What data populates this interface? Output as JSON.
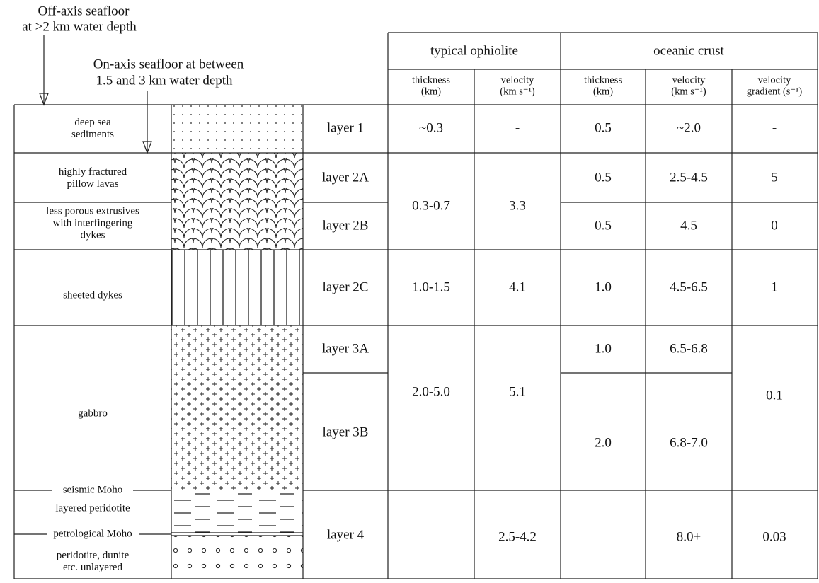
{
  "annotations": {
    "off_axis": [
      "Off-axis seafloor",
      "at >2 km water depth"
    ],
    "on_axis": [
      "On-axis seafloor at between",
      "1.5 and 3 km water depth"
    ]
  },
  "header": {
    "groups": [
      "typical ophiolite",
      "oceanic crust"
    ],
    "columns": [
      [
        "thickness",
        "(km)"
      ],
      [
        "velocity",
        "(km s⁻¹)"
      ],
      [
        "thickness",
        "(km)"
      ],
      [
        "velocity",
        "(km s⁻¹)"
      ],
      [
        "velocity",
        "gradient (s⁻¹)"
      ]
    ]
  },
  "lithology": [
    [
      "deep sea",
      "sediments"
    ],
    [
      "highly fractured",
      "pillow lavas"
    ],
    [
      "less porous extrusives",
      "with interfingering",
      "dykes"
    ],
    [
      "sheeted dykes"
    ],
    [
      "gabbro"
    ],
    [
      "layered peridotite"
    ],
    [
      "peridotite, dunite",
      "etc. unlayered"
    ]
  ],
  "boundaries": [
    "seismic Moho",
    "petrological Moho"
  ],
  "layers": [
    "layer 1",
    "layer 2A",
    "layer 2B",
    "layer 2C",
    "layer 3A",
    "layer 3B",
    "layer 4"
  ],
  "ophiolite": {
    "thickness": [
      "~0.3",
      "0.3-0.7",
      "1.0-1.5",
      "2.0-5.0"
    ],
    "velocity": [
      "-",
      "3.3",
      "4.1",
      "5.1",
      "2.5-4.2"
    ]
  },
  "oceanic_crust": {
    "thickness": [
      "0.5",
      "0.5",
      "0.5",
      "1.0",
      "1.0",
      "2.0"
    ],
    "velocity": [
      "~2.0",
      "2.5-4.5",
      "4.5",
      "4.5-6.5",
      "6.5-6.8",
      "6.8-7.0",
      "8.0+"
    ],
    "velocity_gradient": [
      "-",
      "5",
      "0",
      "1",
      "0.1",
      "0.03"
    ]
  }
}
